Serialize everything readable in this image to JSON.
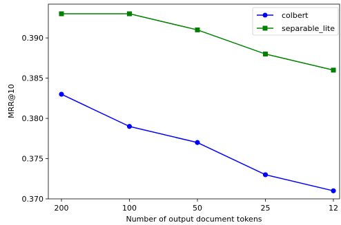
{
  "chart_data": {
    "type": "line",
    "x_categories": [
      "200",
      "100",
      "50",
      "25",
      "12"
    ],
    "xlabel": "Number of output document tokens",
    "ylabel": "MRR@10",
    "ylim": [
      0.37,
      0.3942
    ],
    "yticks": [
      0.37,
      0.375,
      0.38,
      0.385,
      0.39
    ],
    "ytick_labels": [
      "0.370",
      "0.375",
      "0.380",
      "0.385",
      "0.390"
    ],
    "grid": false,
    "legend_position": "top-right",
    "series": [
      {
        "name": "colbert",
        "color": "#0000ff",
        "marker": "circle",
        "values": [
          0.383,
          0.379,
          0.377,
          0.373,
          0.371
        ]
      },
      {
        "name": "separable_lite",
        "color": "#008000",
        "marker": "square",
        "values": [
          0.393,
          0.393,
          0.391,
          0.388,
          0.386
        ]
      }
    ]
  }
}
